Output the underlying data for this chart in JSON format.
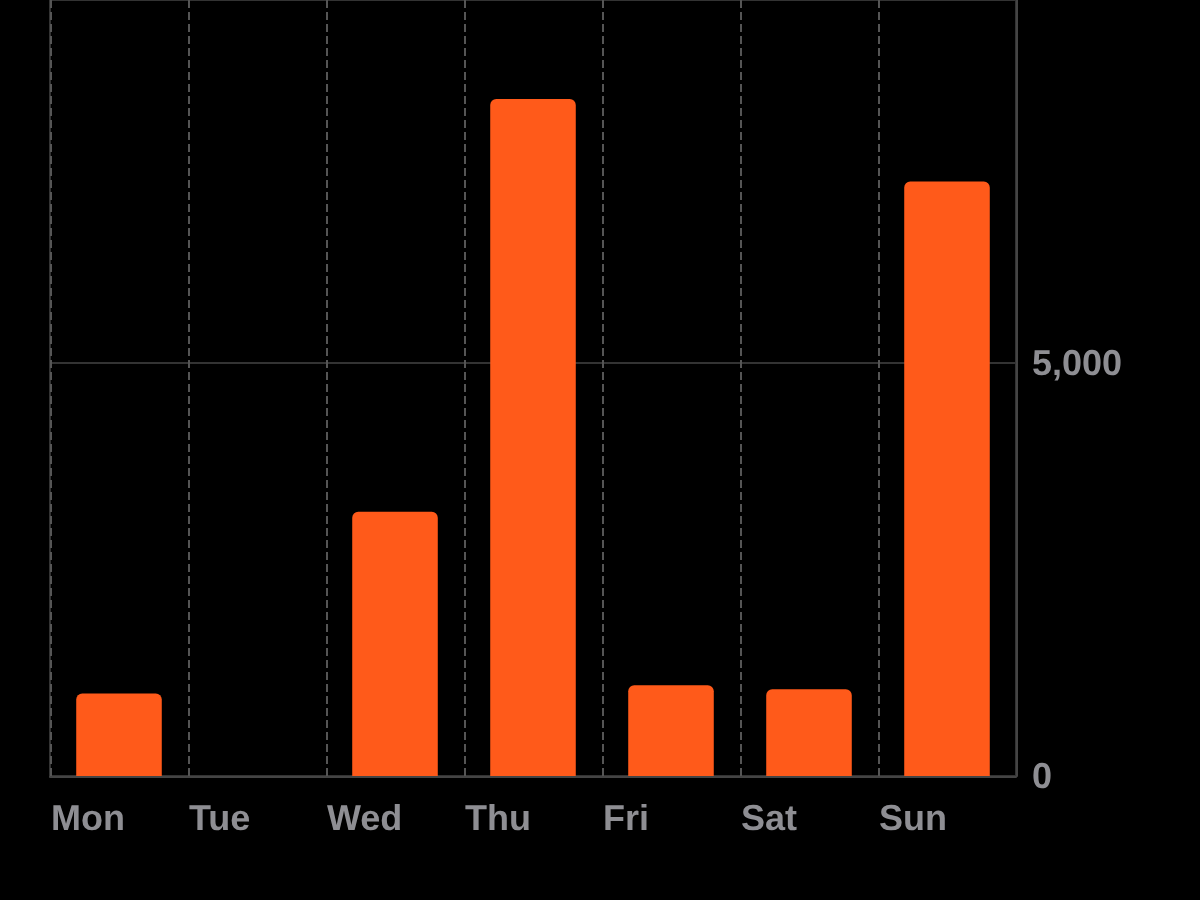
{
  "chart_data": {
    "type": "bar",
    "categories": [
      "Mon",
      "Tue",
      "Wed",
      "Thu",
      "Fri",
      "Sat",
      "Sun"
    ],
    "values": [
      1000,
      0,
      3200,
      8200,
      1100,
      1050,
      7200
    ],
    "color": "#ff5a1a",
    "ylim": [
      0,
      9400
    ],
    "yticks": [
      0,
      {
        "value": 5000,
        "label": "5,000"
      }
    ],
    "grid": true
  }
}
